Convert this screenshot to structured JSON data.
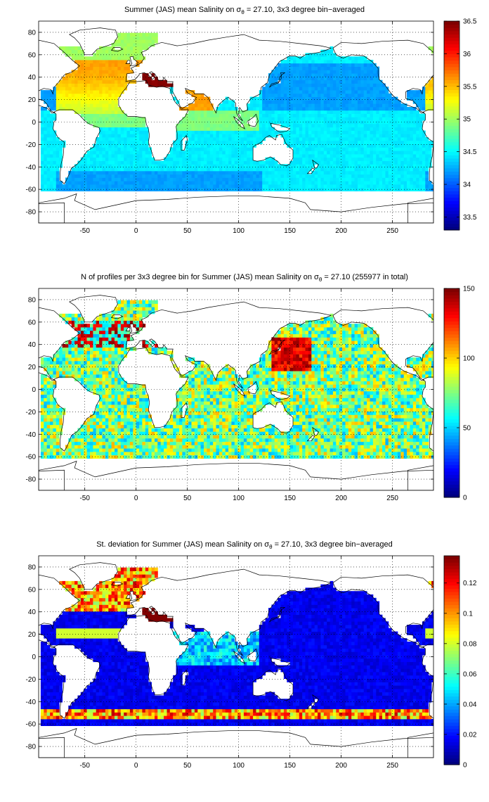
{
  "figure": {
    "maps": [
      {
        "title_before": "Summer (JAS) mean Salinity on ",
        "title_sigma": "σ",
        "title_sub": "θ",
        "title_after": " = 27.10, 3x3 degree bin−averaged",
        "colorbar": {
          "min": 33.3,
          "max": 36.5,
          "ticks": [
            "33.5",
            "34",
            "34.5",
            "35",
            "35.5",
            "36",
            "36.5"
          ],
          "tick_values": [
            33.5,
            34,
            34.5,
            35,
            35.5,
            36,
            36.5
          ]
        }
      },
      {
        "title_before": "N of profiles per 3x3 degree bin for Summer (JAS) mean Salinity on ",
        "title_sigma": "σ",
        "title_sub": "θ",
        "title_after": " = 27.10 (255977 in total)",
        "colorbar": {
          "min": 0,
          "max": 150,
          "ticks": [
            "0",
            "50",
            "100",
            "150"
          ],
          "tick_values": [
            0,
            50,
            100,
            150
          ]
        }
      },
      {
        "title_before": "St. deviation for Summer (JAS) mean Salinity on ",
        "title_sigma": "σ",
        "title_sub": "θ",
        "title_after": " = 27.10, 3x3 degree bin−averaged",
        "colorbar": {
          "min": 0,
          "max": 0.138,
          "ticks": [
            "0",
            "0.02",
            "0.04",
            "0.06",
            "0.08",
            "0.1",
            "0.12"
          ],
          "tick_values": [
            0,
            0.02,
            0.04,
            0.06,
            0.08,
            0.1,
            0.12
          ]
        }
      }
    ],
    "axes": {
      "x_range": [
        -95,
        290
      ],
      "y_range": [
        -90,
        90
      ],
      "x_ticks": [
        "-50",
        "0",
        "50",
        "100",
        "150",
        "200",
        "250"
      ],
      "x_tick_values": [
        -50,
        0,
        50,
        100,
        150,
        200,
        250
      ],
      "y_ticks": [
        "80",
        "60",
        "40",
        "20",
        "0",
        "-20",
        "-40",
        "-60",
        "-80"
      ],
      "y_tick_values": [
        80,
        60,
        40,
        20,
        0,
        -20,
        -40,
        -60,
        -80
      ],
      "grid": "dotted"
    },
    "colormap": "jet"
  }
}
